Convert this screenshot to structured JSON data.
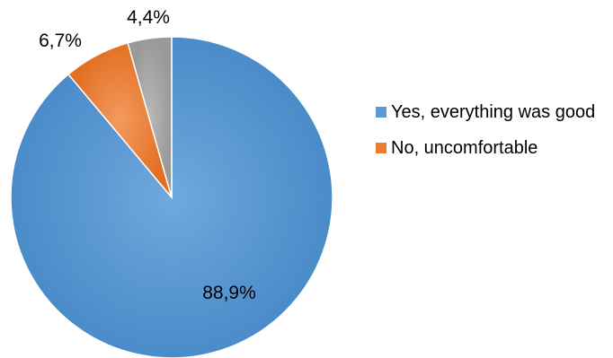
{
  "chart_data": {
    "type": "pie",
    "title": "",
    "start_angle_deg": 0,
    "direction": "clockwise",
    "slices": [
      {
        "name": "Yes, everything was good",
        "value": 88.9,
        "label": "88,9%",
        "color": "#5B9BD5",
        "in_legend": true
      },
      {
        "name": "No, uncomfortable",
        "value": 6.7,
        "label": "6,7%",
        "color": "#ED7D31",
        "in_legend": true
      },
      {
        "name": "",
        "value": 4.4,
        "label": "4,4%",
        "color": "#A5A5A5",
        "in_legend": false
      }
    ],
    "legend": {
      "placement": "right",
      "entries": [
        "Yes, everything was good",
        "No, uncomfortable"
      ]
    }
  }
}
